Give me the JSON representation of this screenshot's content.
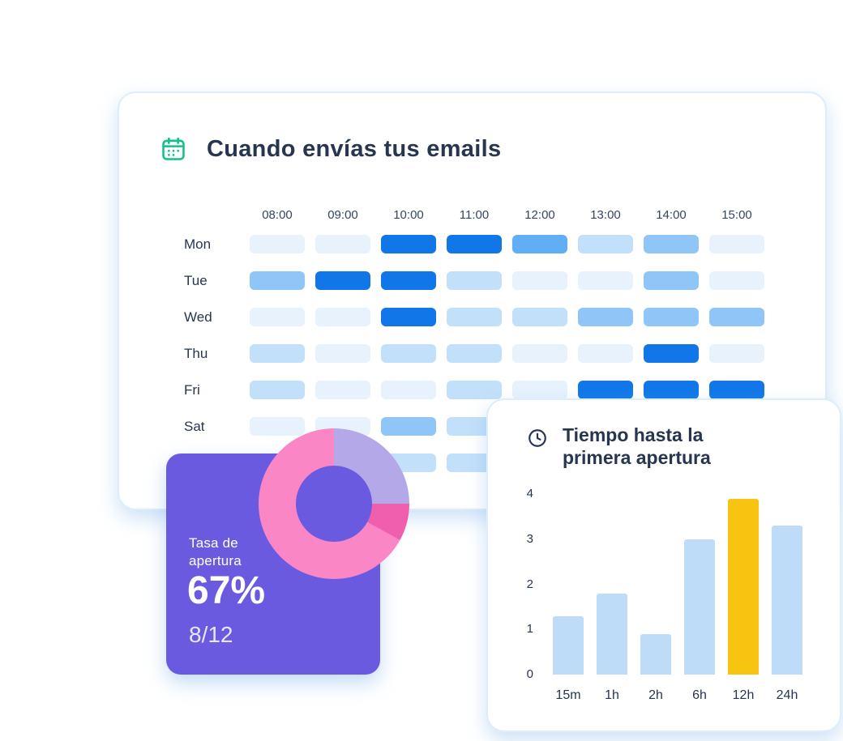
{
  "colors": {
    "accent_green": "#10c18c",
    "text_dark": "#27364f",
    "purple_card_bg": "#6a5ae0",
    "card_border": "#dcedfb"
  },
  "chart_data": [
    {
      "type": "heatmap",
      "title": "Cuando envías tus emails",
      "icon": "calendar-icon",
      "x_labels": [
        "08:00",
        "09:00",
        "10:00",
        "11:00",
        "12:00",
        "13:00",
        "14:00",
        "15:00"
      ],
      "y_labels": [
        "Mon",
        "Tue",
        "Wed",
        "Thu",
        "Fri",
        "Sat",
        ""
      ],
      "level_colors": [
        "#e7f2fd",
        "#c3e0fa",
        "#8fc6f7",
        "#61aef5",
        "#1177e8"
      ],
      "values": [
        [
          0,
          0,
          4,
          4,
          3,
          1,
          2,
          0
        ],
        [
          2,
          4,
          4,
          1,
          0,
          0,
          2,
          0
        ],
        [
          0,
          0,
          4,
          1,
          1,
          2,
          2,
          2
        ],
        [
          1,
          0,
          1,
          1,
          0,
          0,
          4,
          0
        ],
        [
          1,
          0,
          0,
          1,
          0,
          4,
          4,
          4
        ],
        [
          0,
          0,
          2,
          1,
          0,
          0,
          0,
          0
        ],
        [
          0,
          0,
          1,
          1,
          0,
          0,
          0,
          0
        ]
      ],
      "legend": false,
      "grid": false
    },
    {
      "type": "pie",
      "donut": true,
      "title": "Tasa de apertura",
      "center_label": "67%",
      "sub_label": "8/12",
      "slices": [
        {
          "name": "segment-lavender",
          "pct": 25,
          "color": "#b4a8e9"
        },
        {
          "name": "segment-dark-pink",
          "pct": 8,
          "color": "#ef5fae"
        },
        {
          "name": "segment-pink",
          "pct": 67,
          "color": "#fa86c6"
        }
      ],
      "start_angle_deg": 0,
      "legend": false
    },
    {
      "type": "bar",
      "title": "Tiempo hasta la primera apertura",
      "icon": "clock-icon",
      "categories": [
        "15m",
        "1h",
        "2h",
        "6h",
        "12h",
        "24h"
      ],
      "values": [
        1.3,
        1.8,
        0.9,
        3.0,
        3.9,
        3.3
      ],
      "bar_color": "#bedcf7",
      "highlight_category": "12h",
      "highlight_color": "#f7c411",
      "xlabel": "",
      "ylabel": "",
      "ylim": [
        0,
        4
      ],
      "yticks": [
        0,
        1,
        2,
        3,
        4
      ],
      "grid": false,
      "legend": false
    }
  ]
}
